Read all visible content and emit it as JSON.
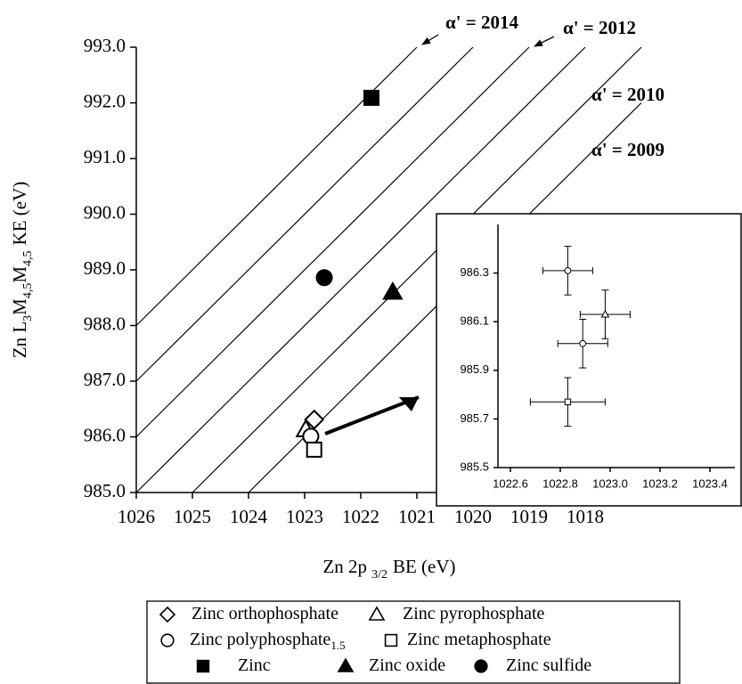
{
  "chart_data": [
    {
      "type": "scatter",
      "x_label": [
        {
          "text": "Zn 2p",
          "sub": "3/2"
        },
        {
          "text": "BE (eV)"
        }
      ],
      "y_label": [
        {
          "text": "Zn L",
          "sub": "3"
        },
        {
          "text": "M",
          "sub": "4,5"
        },
        {
          "text": "M",
          "sub": "4,5"
        },
        {
          "text": "KE (eV)"
        }
      ],
      "xlim": [
        1026,
        1017
      ],
      "ylim": [
        985,
        993
      ],
      "xticks": [
        1026,
        1025,
        1024,
        1023,
        1022,
        1021,
        1020,
        1019,
        1018
      ],
      "yticks": [
        {
          "value": 993,
          "label": "993.0"
        },
        {
          "value": 992,
          "label": "992.0"
        },
        {
          "value": 991,
          "label": "991.0"
        },
        {
          "value": 990,
          "label": "990.0"
        },
        {
          "value": 989,
          "label": "989.0"
        },
        {
          "value": 988,
          "label": "988.0"
        },
        {
          "value": 987,
          "label": "987.0"
        },
        {
          "value": 986,
          "label": "986.0"
        },
        {
          "value": 985,
          "label": "985.0"
        }
      ],
      "reference_lines": [
        {
          "value": 2014,
          "label": "α' = 2014"
        },
        {
          "value": 2013
        },
        {
          "value": 2012,
          "label": "α' = 2012"
        },
        {
          "value": 2011
        },
        {
          "value": 2010,
          "label": "α' = 2010"
        },
        {
          "value": 2009,
          "label": "α' = 2009"
        }
      ],
      "series": [
        {
          "name": "Zinc orthophosphate",
          "marker": "diamond",
          "filled": false,
          "x": [
            1022.83
          ],
          "values": [
            986.31
          ]
        },
        {
          "name": "Zinc pyrophosphate",
          "marker": "triangle",
          "filled": false,
          "x": [
            1022.98
          ],
          "values": [
            986.13
          ]
        },
        {
          "name": "Zinc polyphosphate",
          "name_sub": "1.5",
          "marker": "circle",
          "filled": false,
          "x": [
            1022.89
          ],
          "values": [
            986.01
          ]
        },
        {
          "name": "Zinc metaphosphate",
          "marker": "square",
          "filled": false,
          "x": [
            1022.83
          ],
          "values": [
            985.77
          ]
        },
        {
          "name": "Zinc",
          "marker": "square",
          "filled": true,
          "x": [
            1021.81
          ],
          "values": [
            992.09
          ]
        },
        {
          "name": "Zinc oxide",
          "marker": "triangle",
          "filled": true,
          "x": [
            1021.43
          ],
          "values": [
            988.6
          ]
        },
        {
          "name": "Zinc sulfide",
          "marker": "circle",
          "filled": true,
          "x": [
            1022.65
          ],
          "values": [
            988.86
          ]
        }
      ]
    },
    {
      "type": "scatter",
      "xlim": [
        1022.55,
        1023.5
      ],
      "ylim": [
        985.5,
        986.5
      ],
      "xticks": [
        1022.6,
        1022.8,
        {
          "value": 1023,
          "label": "1023.0"
        },
        1023.2,
        1023.4
      ],
      "yticks": [
        985.5,
        985.7,
        985.9,
        986.1,
        986.3
      ],
      "series": [
        {
          "marker": "circle",
          "x": [
            1022.83
          ],
          "values": [
            986.31
          ],
          "xerr": [
            0.1
          ],
          "yerr": [
            0.1
          ]
        },
        {
          "marker": "triangle",
          "x": [
            1022.98
          ],
          "values": [
            986.13
          ],
          "xerr": [
            0.1
          ],
          "yerr": [
            0.1
          ]
        },
        {
          "marker": "circle",
          "x": [
            1022.89
          ],
          "values": [
            986.01
          ],
          "xerr": [
            0.1
          ],
          "yerr": [
            0.1
          ]
        },
        {
          "marker": "square",
          "x": [
            1022.83
          ],
          "values": [
            985.77
          ],
          "xerr": [
            0.15
          ],
          "yerr": [
            0.1
          ]
        }
      ]
    }
  ]
}
